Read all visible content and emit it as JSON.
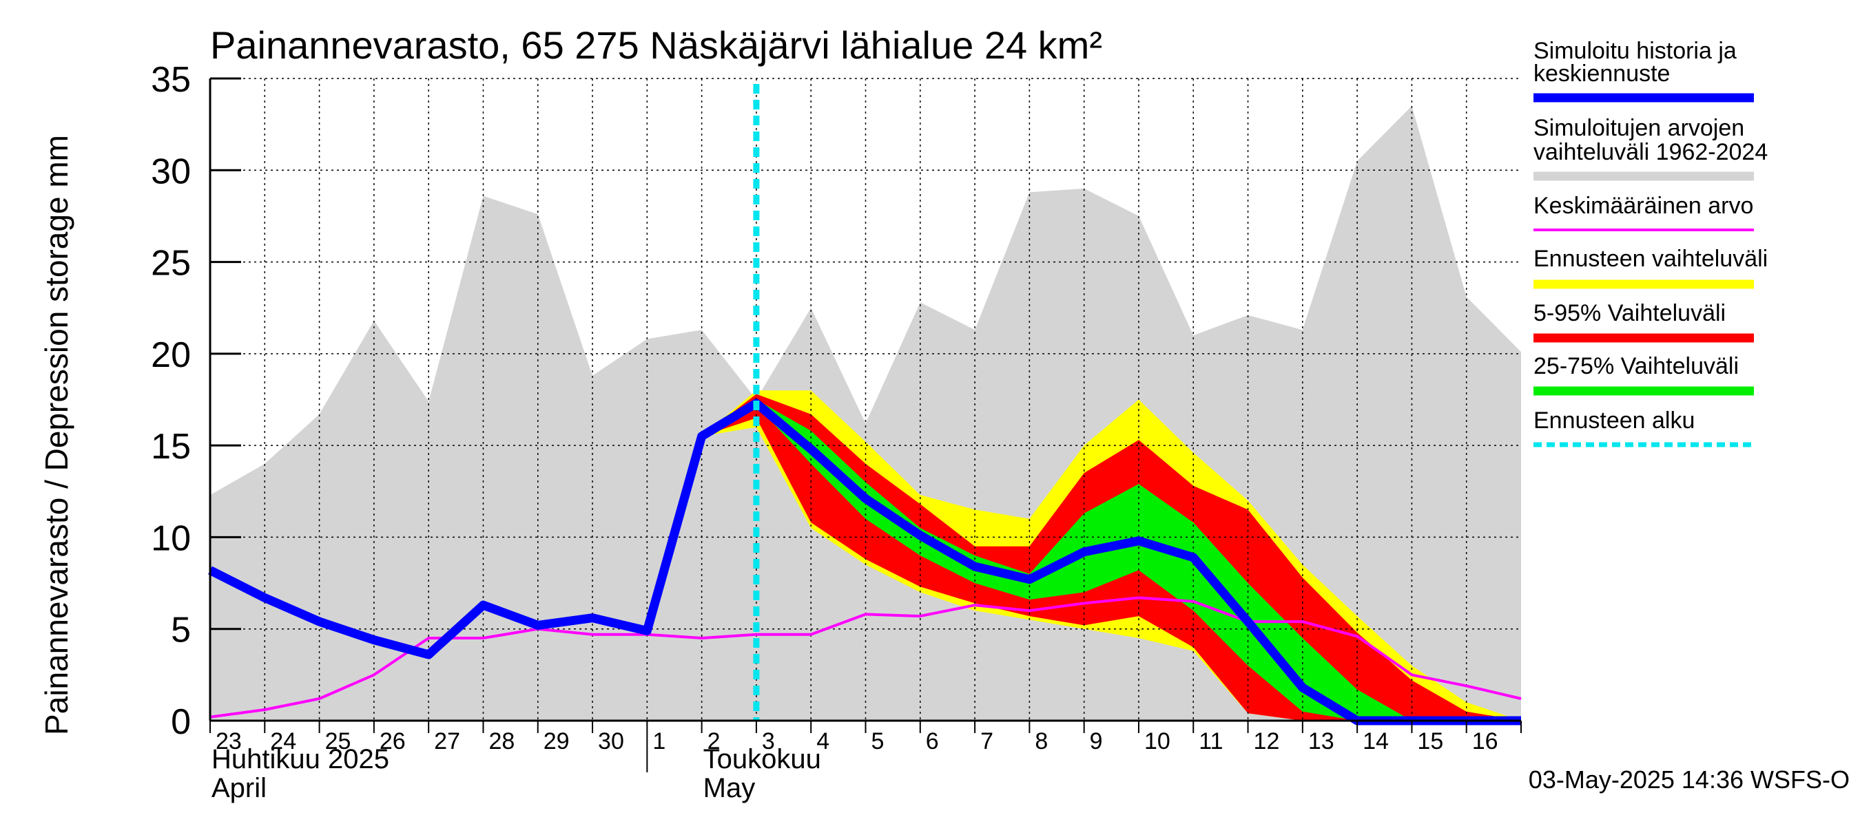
{
  "chart_data": {
    "type": "area",
    "title": "Painannevarasto, 65 275 Näskäjärvi lähialue 24 km²",
    "ylabel": "Painannevarasto / Depression storage    mm",
    "ylim": [
      0,
      35
    ],
    "yticks": [
      0,
      5,
      10,
      15,
      20,
      25,
      30,
      35
    ],
    "xlim": [
      0,
      24
    ],
    "x_tick_labels": [
      "23",
      "24",
      "25",
      "26",
      "27",
      "28",
      "29",
      "30",
      "1",
      "2",
      "3",
      "4",
      "5",
      "6",
      "7",
      "8",
      "9",
      "10",
      "11",
      "12",
      "13",
      "14",
      "15",
      "16"
    ],
    "month_labels": [
      {
        "fi": "Huhtikuu  2025",
        "en": "April",
        "day": 0
      },
      {
        "fi": "Toukokuu",
        "en": "May",
        "day": 9
      }
    ],
    "month_divider_day": 8,
    "forecast_start_day": 10,
    "grid": true,
    "legend_position": "right",
    "timestamp": "03-May-2025 14:36 WSFS-O",
    "colors": {
      "history_range": "#d4d4d4",
      "forecast_range": "#ffff00",
      "p5_95": "#ff0000",
      "p25_75": "#00ee00",
      "simulated": "#0000ff",
      "mean": "#ff00ff",
      "forecast_start": "#00e5ee"
    },
    "series": {
      "history_range": {
        "name": "Simuloitujen arvojen vaihteluväli 1962-2024",
        "x": [
          0,
          1,
          2,
          3,
          4,
          5,
          6,
          7,
          8,
          9,
          10,
          11,
          12,
          13,
          14,
          15,
          16,
          17,
          18,
          19,
          20,
          21,
          22,
          23,
          24
        ],
        "upper": [
          12.3,
          14.0,
          16.7,
          21.8,
          17.4,
          28.6,
          27.6,
          18.8,
          20.8,
          21.3,
          17.5,
          22.5,
          16.2,
          22.8,
          21.3,
          28.8,
          29.0,
          27.5,
          21.0,
          22.1,
          21.3,
          30.5,
          33.5,
          23.1,
          20.1
        ],
        "lower": [
          0,
          0,
          0,
          0,
          0,
          0,
          0,
          0,
          0,
          0,
          0,
          0,
          0,
          0,
          0,
          0,
          0,
          0,
          0,
          0,
          0,
          0,
          0,
          0,
          0
        ]
      },
      "forecast_range": {
        "name": "Ennusteen vaihteluväli",
        "x": [
          9,
          10,
          11,
          12,
          13,
          14,
          15,
          16,
          17,
          18,
          19,
          20,
          21,
          22,
          23,
          24
        ],
        "upper": [
          15.5,
          18.0,
          18.0,
          15.2,
          12.3,
          11.5,
          11.0,
          15.0,
          17.5,
          14.6,
          12.0,
          8.5,
          5.7,
          3.0,
          1.0,
          0
        ],
        "lower": [
          15.5,
          16.0,
          10.5,
          8.5,
          7.0,
          6.0,
          5.5,
          5.0,
          4.5,
          3.8,
          0.4,
          0,
          0,
          0,
          0,
          0
        ]
      },
      "p5_95": {
        "name": "5-95% Vaihteluväli",
        "x": [
          9,
          10,
          11,
          12,
          13,
          14,
          15,
          16,
          17,
          18,
          19,
          20,
          21,
          22,
          23,
          24
        ],
        "upper": [
          15.5,
          17.8,
          16.7,
          14.0,
          11.8,
          9.5,
          9.5,
          13.5,
          15.3,
          12.8,
          11.5,
          7.8,
          4.8,
          2.2,
          0.5,
          0
        ],
        "lower": [
          15.5,
          16.5,
          10.8,
          8.8,
          7.3,
          6.4,
          5.7,
          5.2,
          5.7,
          4.0,
          0.4,
          0,
          0,
          0,
          0,
          0
        ]
      },
      "p25_75": {
        "name": "25-75% Vaihteluväli",
        "x": [
          9,
          10,
          11,
          12,
          13,
          14,
          15,
          16,
          17,
          18,
          19,
          20,
          21,
          22,
          23,
          24
        ],
        "upper": [
          15.5,
          17.5,
          15.8,
          13.0,
          10.5,
          9.0,
          8.0,
          11.3,
          12.9,
          10.8,
          7.5,
          4.5,
          1.7,
          0,
          0,
          0
        ],
        "lower": [
          15.5,
          17.2,
          14.0,
          11.0,
          9.0,
          7.5,
          6.6,
          7.0,
          8.2,
          6.0,
          3.0,
          0.5,
          0,
          0,
          0,
          0
        ]
      },
      "simulated": {
        "name": "Simuloitu historia ja keskiennuste",
        "x": [
          0,
          1,
          2,
          3,
          4,
          5,
          6,
          7,
          8,
          9,
          10,
          11,
          12,
          13,
          14,
          15,
          16,
          17,
          18,
          19,
          20,
          21,
          22,
          23,
          24
        ],
        "values": [
          8.2,
          6.7,
          5.4,
          4.4,
          3.6,
          6.3,
          5.2,
          5.6,
          4.9,
          15.5,
          17.3,
          14.8,
          12.1,
          10.1,
          8.4,
          7.7,
          9.2,
          9.8,
          8.9,
          5.4,
          1.8,
          0,
          0,
          0,
          0
        ]
      },
      "mean": {
        "name": "Keskimääräinen arvo",
        "x": [
          0,
          1,
          2,
          3,
          4,
          5,
          6,
          7,
          8,
          9,
          10,
          11,
          12,
          13,
          14,
          15,
          16,
          17,
          18,
          19,
          20,
          21,
          22,
          23,
          24
        ],
        "values": [
          0.2,
          0.6,
          1.2,
          2.5,
          4.5,
          4.5,
          5.0,
          4.7,
          4.7,
          4.5,
          4.7,
          4.7,
          5.8,
          5.7,
          6.3,
          6.0,
          6.4,
          6.7,
          6.5,
          5.4,
          5.4,
          4.6,
          2.5,
          1.9,
          1.2
        ]
      },
      "forecast_start": {
        "name": "Ennusteen alku"
      }
    },
    "legend": [
      {
        "key": "simulated",
        "label_lines": [
          "Simuloitu historia ja",
          "keskiennuste"
        ]
      },
      {
        "key": "history_range",
        "label_lines": [
          "Simuloitujen arvojen",
          "vaihteluväli 1962-2024"
        ]
      },
      {
        "key": "mean",
        "label_lines": [
          "Keskimääräinen arvo"
        ]
      },
      {
        "key": "forecast_range",
        "label_lines": [
          "Ennusteen vaihteluväli"
        ]
      },
      {
        "key": "p5_95",
        "label_lines": [
          "5-95% Vaihteluväli"
        ]
      },
      {
        "key": "p25_75",
        "label_lines": [
          "25-75% Vaihteluväli"
        ]
      },
      {
        "key": "forecast_start",
        "label_lines": [
          "Ennusteen alku"
        ]
      }
    ]
  }
}
